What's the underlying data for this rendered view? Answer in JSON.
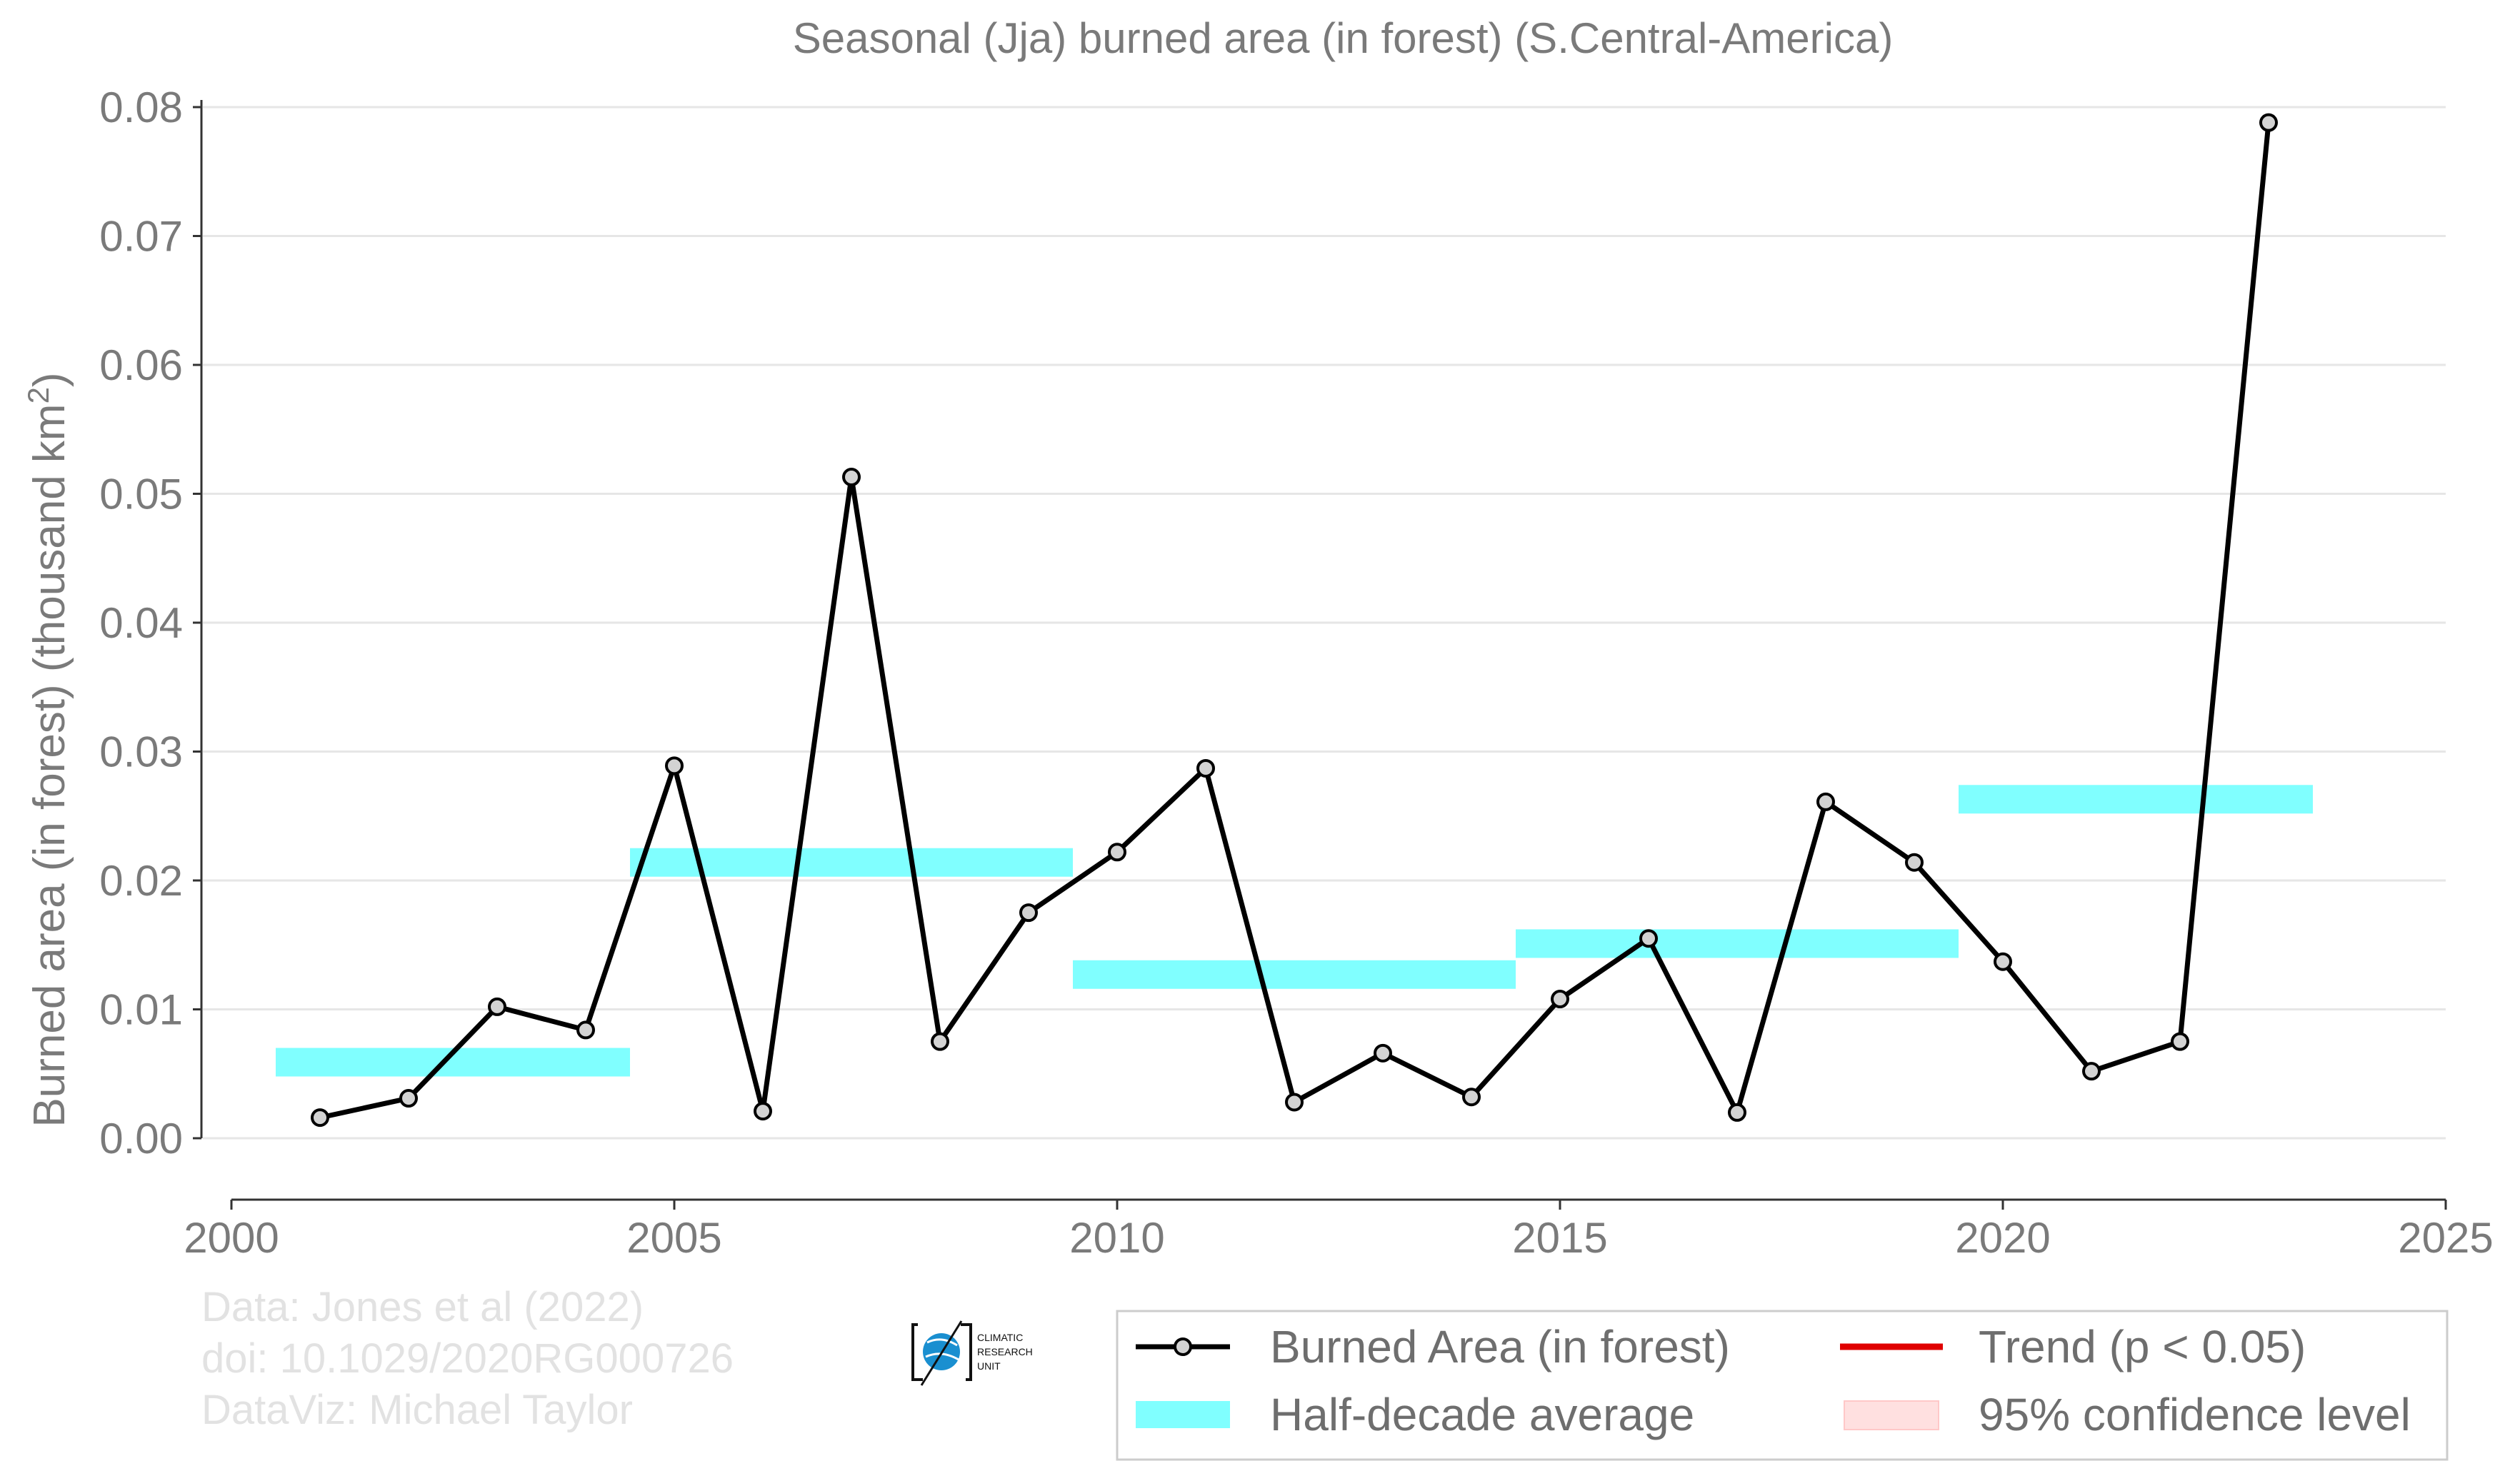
{
  "chart_data": {
    "type": "line",
    "title": "Seasonal (Jja) burned area (in forest) (S.Central-America)",
    "ylabel": "Burned area (in forest) (thousand km",
    "ylabel_sup": "2",
    "ylabel_end": ")",
    "xlabel": "",
    "xlim": [
      2000,
      2025
    ],
    "ylim": [
      0,
      0.08
    ],
    "x_ticks": [
      "2000",
      "2005",
      "2010",
      "2015",
      "2020",
      "2025"
    ],
    "y_ticks": [
      "0.00",
      "0.01",
      "0.02",
      "0.03",
      "0.04",
      "0.05",
      "0.06",
      "0.07",
      "0.08"
    ],
    "grid": "horizontal",
    "series": [
      {
        "name": "Burned Area (in forest)",
        "color": "#000000",
        "marker_fill": "#d3d3d3",
        "x": [
          2001,
          2002,
          2003,
          2004,
          2005,
          2006,
          2007,
          2008,
          2009,
          2010,
          2011,
          2012,
          2013,
          2014,
          2015,
          2016,
          2017,
          2018,
          2019,
          2020,
          2021,
          2022,
          2023
        ],
        "y": [
          0.0016,
          0.0031,
          0.0102,
          0.0084,
          0.0289,
          0.0021,
          0.0513,
          0.0075,
          0.0175,
          0.0222,
          0.0287,
          0.0028,
          0.0066,
          0.0032,
          0.0108,
          0.0155,
          0.002,
          0.0261,
          0.0214,
          0.0137,
          0.0052,
          0.0075,
          0.0788
        ]
      }
    ],
    "half_decade_average": {
      "name": "Half-decade average",
      "color": "#80ffff",
      "segments": [
        {
          "x0": 2000.5,
          "x1": 2004.5,
          "y": 0.0059
        },
        {
          "x0": 2004.5,
          "x1": 2009.5,
          "y": 0.0214
        },
        {
          "x0": 2009.5,
          "x1": 2014.5,
          "y": 0.0127
        },
        {
          "x0": 2014.5,
          "x1": 2019.5,
          "y": 0.0151
        },
        {
          "x0": 2019.5,
          "x1": 2023.5,
          "y": 0.0263
        }
      ]
    },
    "legend": [
      {
        "label": "Burned Area (in forest)",
        "kind": "line-marker",
        "color": "#000000"
      },
      {
        "label": "Half-decade average",
        "kind": "band",
        "color": "#80ffff"
      },
      {
        "label": "Trend (p < 0.05)",
        "kind": "line",
        "color": "#e00000"
      },
      {
        "label": "95% confidence level",
        "kind": "band",
        "color": "#ffdede"
      }
    ],
    "legend_position": "bottom-right"
  },
  "credits": {
    "line1": "Data: Jones et al (2022)",
    "line2": "doi: 10.1029/2020RG000726",
    "line3": "DataViz: Michael Taylor"
  },
  "logo": {
    "line1": "CLIMATIC",
    "line2": "RESEARCH",
    "line3": "UNIT"
  }
}
